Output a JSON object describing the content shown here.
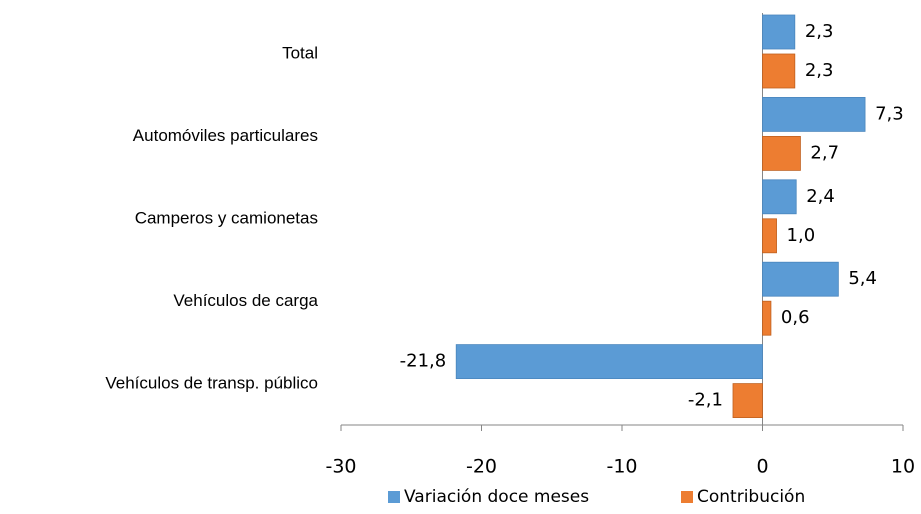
{
  "chart_data": {
    "type": "bar",
    "orientation": "horizontal",
    "categories": [
      "Total",
      "Automóviles particulares",
      "Camperos y camionetas",
      "Vehículos de carga",
      "Vehículos de transp. público"
    ],
    "series": [
      {
        "name": "Variación doce meses",
        "color": "#5b9bd5",
        "values": [
          2.3,
          7.3,
          2.4,
          5.4,
          -21.8
        ],
        "value_labels": [
          "2,3",
          "7,3",
          "2,4",
          "5,4",
          "-21,8"
        ]
      },
      {
        "name": "Contribución",
        "color": "#ed7d31",
        "values": [
          2.3,
          2.7,
          1.0,
          0.6,
          -2.1
        ],
        "value_labels": [
          "2,3",
          "2,7",
          "1,0",
          "0,6",
          "-2,1"
        ]
      }
    ],
    "xlim": [
      -30,
      10
    ],
    "xticks": [
      -30,
      -20,
      -10,
      0,
      10
    ]
  }
}
